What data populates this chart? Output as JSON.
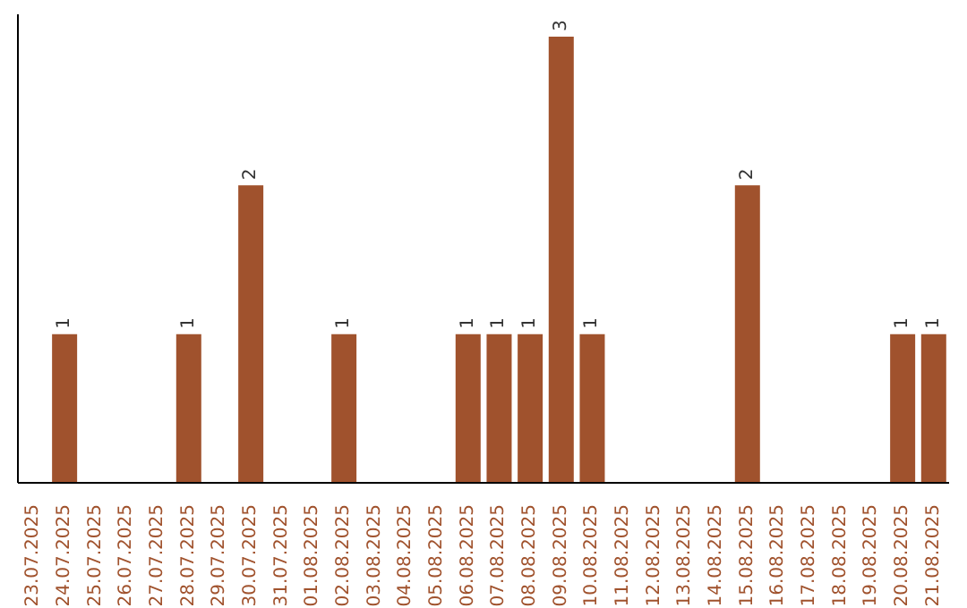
{
  "chart_data": {
    "type": "bar",
    "categories": [
      "23.07.2025",
      "24.07.2025",
      "25.07.2025",
      "26.07.2025",
      "27.07.2025",
      "28.07.2025",
      "29.07.2025",
      "30.07.2025",
      "31.07.2025",
      "01.08.2025",
      "02.08.2025",
      "03.08.2025",
      "04.08.2025",
      "05.08.2025",
      "06.08.2025",
      "07.08.2025",
      "08.08.2025",
      "09.08.2025",
      "10.08.2025",
      "11.08.2025",
      "12.08.2025",
      "13.08.2025",
      "14.08.2025",
      "15.08.2025",
      "16.08.2025",
      "17.08.2025",
      "18.08.2025",
      "19.08.2025",
      "20.08.2025",
      "21.08.2025"
    ],
    "values": [
      0,
      1,
      0,
      0,
      0,
      1,
      0,
      2,
      0,
      0,
      1,
      0,
      0,
      0,
      1,
      1,
      1,
      3,
      1,
      0,
      0,
      0,
      0,
      2,
      0,
      0,
      0,
      0,
      1,
      1
    ],
    "value_labels": [
      null,
      "1",
      null,
      null,
      null,
      "1",
      null,
      "2",
      null,
      null,
      "1",
      null,
      null,
      null,
      "1",
      "1",
      "1",
      "3",
      "1",
      null,
      null,
      null,
      null,
      "2",
      null,
      null,
      null,
      null,
      "1",
      "1"
    ],
    "color": "#a0522d",
    "ylim": [
      0,
      3.15
    ],
    "tick_labels": "x",
    "grid": false,
    "legend": false
  }
}
